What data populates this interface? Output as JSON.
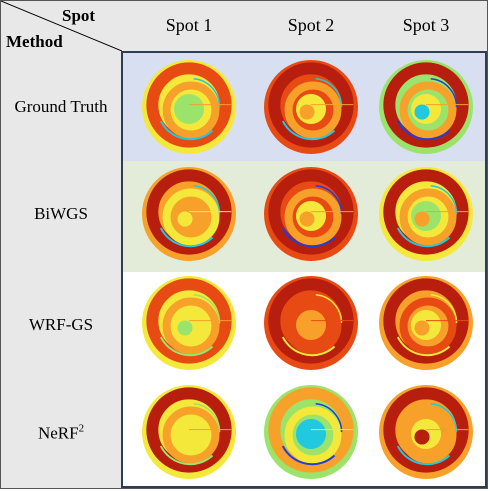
{
  "header": {
    "corner_top": "Spot",
    "corner_bottom": "Method",
    "columns": [
      "Spot 1",
      "Spot 2",
      "Spot 3"
    ]
  },
  "rows": [
    {
      "label": "Ground Truth",
      "band_color": "#d7dff0"
    },
    {
      "label": "BiWGS",
      "band_color": "#e2ecd8"
    },
    {
      "label": "WRF-GS",
      "band_color": "#ffffff"
    },
    {
      "label": "NeRF",
      "label_sup": "2",
      "band_color": "#ffffff"
    }
  ],
  "colors": {
    "header_bg": "#e8e8e8",
    "grid_border": "#2d3d52",
    "heatmap_palette": [
      "#1e3fd8",
      "#22c7e0",
      "#9be36b",
      "#f4e93a",
      "#f7a12a",
      "#e84a14",
      "#b71e0e"
    ]
  }
}
